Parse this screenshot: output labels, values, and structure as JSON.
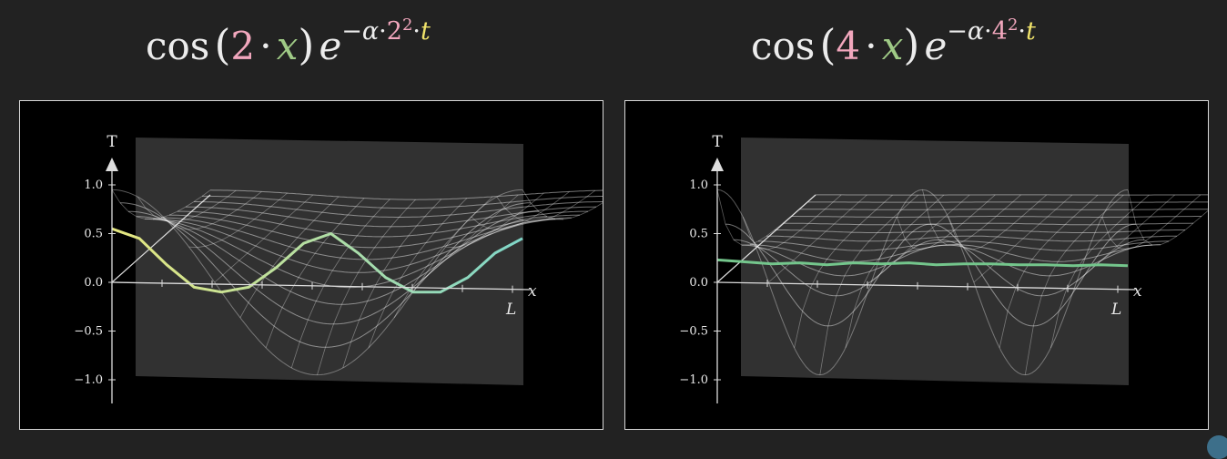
{
  "formulas": [
    {
      "fn": "cos",
      "open": "(",
      "k": "2",
      "dot": "·",
      "x": "x",
      "close": ")",
      "e": "e",
      "minus": "−",
      "alpha": "α",
      "dot2": "·",
      "k2": "2",
      "sq": "2",
      "dot3": "·",
      "t": "t"
    },
    {
      "fn": "cos",
      "open": "(",
      "k": "4",
      "dot": "·",
      "x": "x",
      "close": ")",
      "e": "e",
      "minus": "−",
      "alpha": "α",
      "dot2": "·",
      "k2": "4",
      "sq": "2",
      "dot3": "·",
      "t": "t"
    }
  ],
  "colors": {
    "background": "#222222",
    "panel": "#000000",
    "surface": "#5a5a5a",
    "frequency": "#f2a7bd",
    "x_variable": "#9fca86",
    "time_variable": "#f0e36a",
    "curve_left_start": "#e6e77f",
    "curve_left_end": "#7fd6c8",
    "curve_right": "#74c68c"
  },
  "chart_data": [
    {
      "type": "line",
      "title": "",
      "ylabel": "T",
      "xlabel": "x",
      "x_end_label": "L",
      "yticks": [
        "1.0",
        "0.5",
        "0.0",
        "−0.5",
        "−1.0"
      ],
      "ylim": [
        -1.0,
        1.0
      ],
      "frequency": 2,
      "decay_exponent": "−α·2²·t",
      "time_slices": 12,
      "series": [
        {
          "values": [
            0.55,
            0.45,
            0.18,
            -0.05,
            -0.1,
            -0.05,
            0.15,
            0.4,
            0.5,
            0.3,
            0.05,
            -0.1,
            -0.1,
            0.05,
            0.3,
            0.45
          ]
        }
      ]
    },
    {
      "type": "line",
      "title": "",
      "ylabel": "T",
      "xlabel": "x",
      "x_end_label": "L",
      "yticks": [
        "1.0",
        "0.5",
        "0.0",
        "−0.5",
        "−1.0"
      ],
      "ylim": [
        -1.0,
        1.0
      ],
      "frequency": 4,
      "decay_exponent": "−α·4²·t",
      "time_slices": 12,
      "series": [
        {
          "values": [
            0.23,
            0.21,
            0.19,
            0.2,
            0.18,
            0.2,
            0.19,
            0.2,
            0.18,
            0.19,
            0.19,
            0.18,
            0.18,
            0.17,
            0.18,
            0.17
          ]
        }
      ]
    }
  ]
}
